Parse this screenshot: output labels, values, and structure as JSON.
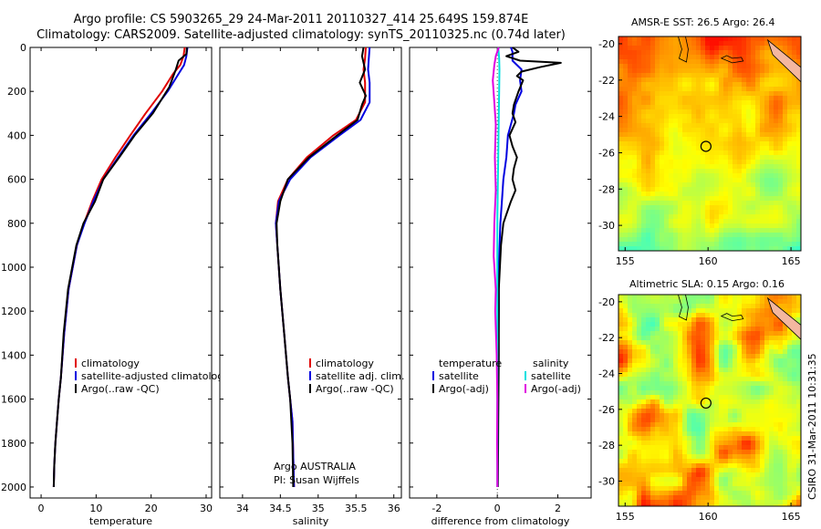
{
  "header": {
    "title_line1": "Argo profile: CS 5903265_29 24-Mar-2011 20110327_414 25.649S 159.874E",
    "title_line2": "Climatology: CARS2009. Satellite-adjusted climatology: synTS_20110325.nc (0.74d later)"
  },
  "footer": {
    "argo_country": "Argo AUSTRALIA",
    "pi": "PI: Susan Wijffels",
    "stamp": "CSIRO 31-Mar-2011 10:31:35"
  },
  "colors": {
    "climatology": "#e00000",
    "satellite": "#0000e0",
    "argo": "#000000",
    "sat_salinity": "#00e0e0",
    "argo_salinity": "#e000e0"
  },
  "chart_data": [
    {
      "id": "temperature",
      "type": "line",
      "xlabel": "temperature",
      "ylabel": "",
      "xlim": [
        -2,
        31
      ],
      "ylim": [
        2050,
        0
      ],
      "xticks": [
        0,
        10,
        20,
        30
      ],
      "yticks": [
        0,
        200,
        400,
        600,
        800,
        1000,
        1200,
        1400,
        1600,
        1800,
        2000
      ],
      "legend": [
        "climatology",
        "satellite-adjusted climatology",
        "Argo(..raw -QC)"
      ],
      "series": [
        {
          "name": "climatology",
          "color": "#e00000",
          "x": [
            26.1,
            25.9,
            25.3,
            24.0,
            22.0,
            19.0,
            16.2,
            13.5,
            11.0,
            9.3,
            7.8,
            6.5,
            5.0,
            4.2,
            3.6,
            3.2,
            2.9,
            2.6,
            2.4,
            2.3
          ],
          "y": [
            0,
            40,
            80,
            120,
            200,
            300,
            400,
            500,
            600,
            700,
            800,
            900,
            1100,
            1300,
            1500,
            1600,
            1700,
            1800,
            1900,
            2000
          ]
        },
        {
          "name": "satellite-adjusted climatology",
          "color": "#0000e0",
          "x": [
            26.6,
            26.4,
            26.0,
            25.0,
            23.0,
            20.0,
            16.8,
            14.0,
            11.3,
            9.5,
            7.9,
            6.5,
            5.0,
            4.2,
            3.6,
            3.2,
            2.9,
            2.6,
            2.4,
            2.3
          ],
          "y": [
            0,
            40,
            80,
            120,
            200,
            300,
            400,
            500,
            600,
            700,
            800,
            900,
            1100,
            1300,
            1500,
            1600,
            1700,
            1800,
            1900,
            2000
          ]
        },
        {
          "name": "Argo(..raw -QC)",
          "color": "#000000",
          "x": [
            26.5,
            26.4,
            25.0,
            24.5,
            23.3,
            20.3,
            17.0,
            14.2,
            11.3,
            9.8,
            7.7,
            6.4,
            4.9,
            4.1,
            3.6,
            3.2,
            2.9,
            2.6,
            2.4,
            2.3
          ],
          "y": [
            0,
            30,
            60,
            100,
            180,
            300,
            400,
            500,
            600,
            700,
            800,
            900,
            1100,
            1300,
            1500,
            1600,
            1700,
            1800,
            1900,
            2000
          ]
        }
      ]
    },
    {
      "id": "salinity",
      "type": "line",
      "xlabel": "salinity",
      "ylabel": "",
      "xlim": [
        33.7,
        36.1
      ],
      "ylim": [
        2050,
        0
      ],
      "xticks": [
        34,
        34.5,
        35,
        35.5,
        36
      ],
      "yticks": [
        0,
        200,
        400,
        600,
        800,
        1000,
        1200,
        1400,
        1600,
        1800,
        2000
      ],
      "legend": [
        "climatology",
        "satellite adj. clim.",
        "Argo(..raw -QC)"
      ],
      "series": [
        {
          "name": "climatology",
          "color": "#e00000",
          "x": [
            35.63,
            35.62,
            35.6,
            35.62,
            35.62,
            35.5,
            35.2,
            34.85,
            34.6,
            34.47,
            34.44,
            34.46,
            34.5,
            34.55,
            34.6,
            34.63,
            34.66,
            34.67,
            34.68
          ],
          "y": [
            0,
            50,
            100,
            160,
            250,
            330,
            400,
            500,
            600,
            700,
            800,
            900,
            1100,
            1300,
            1500,
            1600,
            1700,
            1850,
            2000
          ]
        },
        {
          "name": "satellite adj. clim.",
          "color": "#0000e0",
          "x": [
            35.68,
            35.67,
            35.66,
            35.68,
            35.68,
            35.56,
            35.28,
            34.9,
            34.63,
            34.48,
            34.44,
            34.46,
            34.5,
            34.55,
            34.6,
            34.63,
            34.66,
            34.67,
            34.68
          ],
          "y": [
            0,
            50,
            100,
            160,
            250,
            330,
            400,
            500,
            600,
            700,
            800,
            900,
            1100,
            1300,
            1500,
            1600,
            1700,
            1850,
            2000
          ]
        },
        {
          "name": "Argo(..raw -QC)",
          "color": "#000000",
          "x": [
            35.6,
            35.58,
            35.62,
            35.55,
            35.63,
            35.58,
            35.52,
            35.25,
            34.88,
            34.6,
            34.5,
            34.45,
            34.46,
            34.5,
            34.55,
            34.6,
            34.63,
            34.66,
            34.67
          ],
          "y": [
            0,
            40,
            100,
            160,
            220,
            260,
            330,
            400,
            500,
            600,
            700,
            800,
            900,
            1100,
            1300,
            1500,
            1600,
            1800,
            2000
          ]
        }
      ]
    },
    {
      "id": "difference",
      "type": "line",
      "xlabel": "difference from climatology",
      "ylabel": "",
      "xlim": [
        -2.9,
        3.1
      ],
      "ylim": [
        2050,
        0
      ],
      "xticks": [
        -2,
        0,
        2
      ],
      "yticks": [
        0,
        200,
        400,
        600,
        800,
        1000,
        1200,
        1400,
        1600,
        1800,
        2000
      ],
      "legend_headers": [
        "temperature",
        "salinity"
      ],
      "legend": [
        "satellite",
        "Argo(-adj)",
        "satellite",
        "Argo(-adj)"
      ],
      "series": [
        {
          "name": "satellite",
          "group": "temperature",
          "color": "#0000e0",
          "x": [
            0.45,
            0.5,
            0.5,
            0.8,
            0.75,
            0.8,
            0.6,
            0.55,
            0.35,
            0.3,
            0.2,
            0.15,
            0.1,
            0.05,
            0.05,
            0.03,
            0.02,
            0.02,
            0.01
          ],
          "y": [
            0,
            20,
            60,
            100,
            150,
            200,
            260,
            300,
            400,
            500,
            600,
            700,
            800,
            1000,
            1200,
            1400,
            1600,
            1800,
            2000
          ]
        },
        {
          "name": "Argo(-adj)",
          "group": "temperature",
          "color": "#000000",
          "x": [
            0.5,
            0.7,
            0.3,
            0.75,
            2.1,
            1.4,
            0.8,
            0.65,
            0.85,
            0.7,
            0.55,
            0.5,
            0.6,
            0.4,
            0.5,
            0.65,
            0.55,
            0.5,
            0.6,
            0.45,
            0.3,
            0.2,
            0.12,
            0.05,
            0.05,
            0.03,
            0.02
          ],
          "y": [
            0,
            20,
            40,
            60,
            70,
            90,
            110,
            130,
            150,
            200,
            260,
            300,
            340,
            400,
            450,
            500,
            550,
            600,
            650,
            700,
            760,
            800,
            900,
            1100,
            1400,
            1700,
            2000
          ]
        },
        {
          "name": "satellite",
          "group": "salinity",
          "color": "#00e0e0",
          "x": [
            0.03,
            0.06,
            0.07,
            0.06,
            0.05,
            0.04,
            0.03,
            0.02,
            0.01,
            0.0,
            0.0,
            0.0,
            0.0,
            0.0,
            0.0,
            0.0
          ],
          "y": [
            0,
            50,
            100,
            200,
            300,
            400,
            500,
            600,
            700,
            800,
            1000,
            1200,
            1400,
            1600,
            1800,
            2000
          ]
        },
        {
          "name": "Argo(-adj)",
          "group": "salinity",
          "color": "#e000e0",
          "x": [
            0.05,
            -0.05,
            -0.1,
            -0.15,
            -0.1,
            -0.05,
            -0.08,
            -0.05,
            -0.1,
            -0.12,
            -0.05,
            -0.07,
            -0.02,
            0.0,
            -0.01,
            0.0,
            0.0
          ],
          "y": [
            0,
            40,
            80,
            150,
            250,
            350,
            500,
            650,
            800,
            950,
            1100,
            1200,
            1400,
            1600,
            1800,
            1900,
            2000
          ]
        }
      ]
    },
    {
      "id": "sst_map",
      "type": "heatmap",
      "title": "AMSR-E SST: 26.5 Argo: 26.4",
      "xlim": [
        154.6,
        165.6
      ],
      "ylim": [
        -31.4,
        -19.6
      ],
      "xticks": [
        155,
        160,
        165
      ],
      "yticks": [
        -20,
        -22,
        -24,
        -26,
        -28,
        -30
      ],
      "argo_position": [
        159.874,
        -25.649
      ]
    },
    {
      "id": "sla_map",
      "type": "heatmap",
      "title": "Altimetric SLA: 0.15 Argo: 0.16",
      "xlim": [
        154.6,
        165.6
      ],
      "ylim": [
        -31.4,
        -19.6
      ],
      "xticks": [
        155,
        160,
        165
      ],
      "yticks": [
        -20,
        -22,
        -24,
        -26,
        -28,
        -30
      ],
      "argo_position": [
        159.874,
        -25.649
      ]
    }
  ]
}
